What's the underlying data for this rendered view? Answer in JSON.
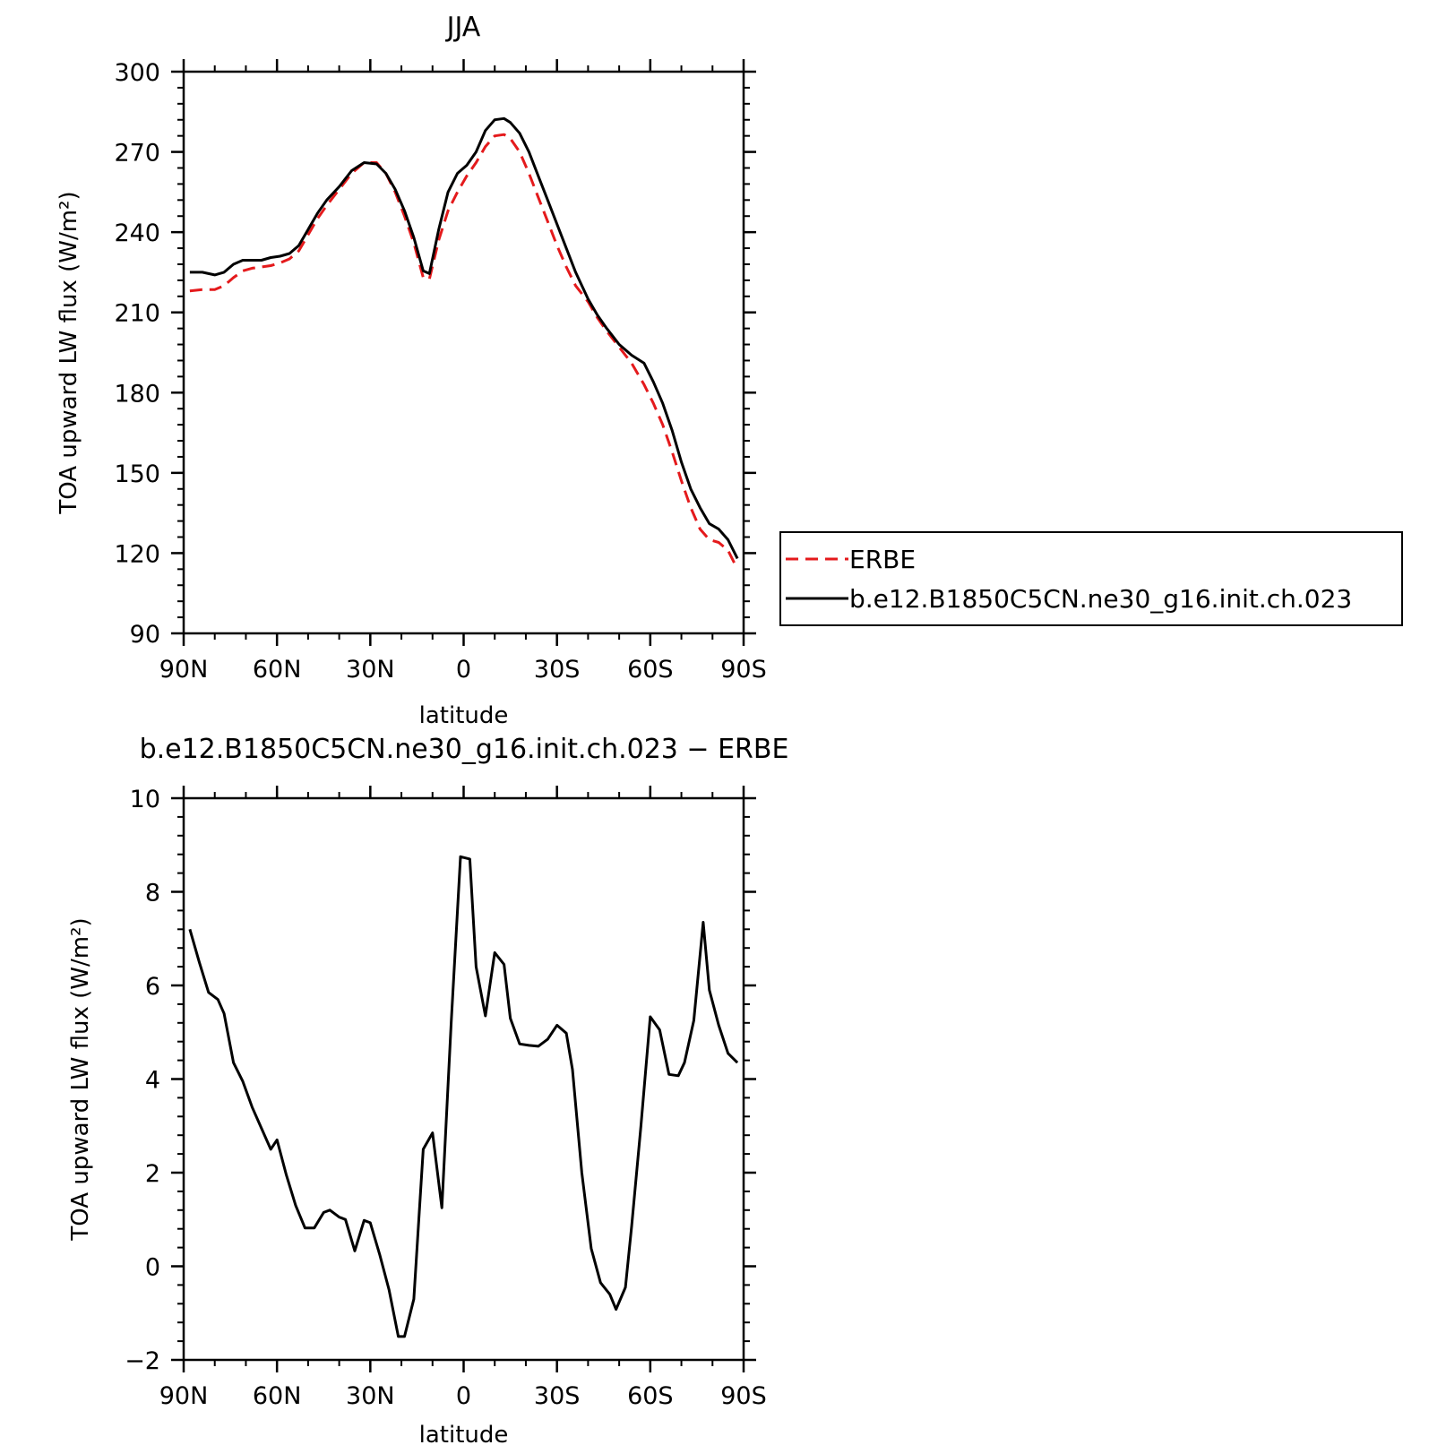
{
  "chart_data": [
    {
      "type": "line",
      "title": "JJA",
      "xlabel": "latitude",
      "ylabel": "TOA upward LW flux (W/m²)",
      "xlim": [
        90,
        -90
      ],
      "ylim": [
        90,
        300
      ],
      "xticks": [
        90,
        60,
        30,
        0,
        -30,
        -60,
        -90
      ],
      "xtick_labels": [
        "90N",
        "60N",
        "30N",
        "0",
        "30S",
        "60S",
        "90S"
      ],
      "yticks": [
        90,
        120,
        150,
        180,
        210,
        240,
        270,
        300
      ],
      "ytick_labels": [
        "90",
        "120",
        "150",
        "180",
        "210",
        "240",
        "270",
        "300"
      ],
      "legend_position": "right",
      "series": [
        {
          "name": "ERBE",
          "color": "#e41a1c",
          "style": "dashed",
          "x": [
            88,
            84,
            80,
            77,
            74,
            71,
            68,
            65,
            62,
            59,
            56,
            53,
            50,
            47,
            44,
            40,
            36,
            32,
            28,
            25,
            22,
            19,
            16,
            13,
            11,
            8,
            5,
            2,
            -1,
            -4,
            -7,
            -10,
            -13,
            -15,
            -18,
            -21,
            -24,
            -27,
            -30,
            -33,
            -36,
            -40,
            -43,
            -46,
            -50,
            -54,
            -58,
            -61,
            -64,
            -67,
            -70,
            -73,
            -76,
            -79,
            -82,
            -85,
            -88
          ],
          "y": [
            218,
            218.5,
            218.5,
            220,
            223,
            225.5,
            226.5,
            227,
            227.5,
            228.5,
            230,
            233,
            239,
            245,
            250,
            256,
            262,
            266,
            266,
            262,
            255,
            246,
            236,
            223,
            222.5,
            237,
            248,
            255,
            261,
            266,
            272,
            276,
            276.5,
            275,
            270,
            262,
            253,
            244,
            235,
            227,
            220,
            214,
            208,
            203,
            197,
            191,
            183,
            176,
            168,
            158,
            147,
            137,
            129,
            125,
            124,
            121,
            114
          ]
        },
        {
          "name": "b.e12.B1850C5CN.ne30_g16.init.ch.023",
          "color": "#000000",
          "style": "solid",
          "x": [
            88,
            84,
            80,
            77,
            74,
            71,
            68,
            65,
            62,
            59,
            56,
            53,
            50,
            47,
            44,
            40,
            36,
            32,
            28,
            25,
            22,
            19,
            16,
            13,
            11,
            8,
            5,
            2,
            -1,
            -4,
            -7,
            -10,
            -13,
            -15,
            -18,
            -21,
            -24,
            -27,
            -30,
            -33,
            -36,
            -40,
            -43,
            -46,
            -50,
            -54,
            -58,
            -61,
            -64,
            -67,
            -70,
            -73,
            -76,
            -79,
            -82,
            -85,
            -88
          ],
          "y": [
            225,
            225,
            224,
            225,
            228,
            229.5,
            229.5,
            229.5,
            230.5,
            231,
            232,
            235,
            241,
            247,
            252,
            257,
            263,
            266,
            265.5,
            262,
            256,
            248,
            238,
            225.5,
            224.5,
            241,
            255,
            262,
            265,
            270,
            278,
            282,
            282.5,
            281,
            277,
            270,
            261,
            252,
            243,
            234,
            225,
            215,
            209,
            204,
            198,
            194,
            191,
            184,
            176,
            166,
            154,
            144,
            137,
            131,
            129,
            125,
            118
          ]
        }
      ]
    },
    {
      "type": "line",
      "title": "b.e12.B1850C5CN.ne30_g16.init.ch.023 − ERBE",
      "xlabel": "latitude",
      "ylabel": "TOA upward LW flux (W/m²)",
      "xlim": [
        90,
        -90
      ],
      "ylim": [
        -2,
        10
      ],
      "xticks": [
        90,
        60,
        30,
        0,
        -30,
        -60,
        -90
      ],
      "xtick_labels": [
        "90N",
        "60N",
        "30N",
        "0",
        "30S",
        "60S",
        "90S"
      ],
      "yticks": [
        -2,
        0,
        2,
        4,
        6,
        8,
        10
      ],
      "ytick_labels": [
        "−2",
        "0",
        "2",
        "4",
        "6",
        "8",
        "10"
      ],
      "series": [
        {
          "color": "#000000",
          "style": "solid",
          "x": [
            88,
            85,
            82,
            79,
            77,
            74,
            71,
            68,
            65,
            62,
            60,
            57,
            54,
            51,
            48,
            45,
            43,
            40,
            38,
            35,
            32,
            30,
            27,
            24,
            21,
            19,
            16,
            13,
            10,
            7,
            4,
            1,
            -2,
            -4,
            -7,
            -10,
            -13,
            -15,
            -18,
            -21,
            -24,
            -27,
            -30,
            -33,
            -35,
            -38,
            -41,
            -44,
            -47,
            -49,
            -52,
            -54,
            -57,
            -60,
            -63,
            -66,
            -69,
            -71,
            -74,
            -77,
            -79,
            -82,
            -85,
            -88
          ],
          "y": [
            7.2,
            6.5,
            5.85,
            5.7,
            5.4,
            4.35,
            3.95,
            3.4,
            2.95,
            2.5,
            2.7,
            1.95,
            1.3,
            0.82,
            0.82,
            1.15,
            1.2,
            1.05,
            1.0,
            0.33,
            0.98,
            0.93,
            0.25,
            -0.5,
            -1.5,
            -1.5,
            -0.7,
            2.5,
            2.85,
            1.25,
            5.2,
            8.75,
            8.7,
            6.4,
            5.35,
            6.7,
            6.45,
            5.3,
            4.75,
            4.72,
            4.7,
            4.85,
            5.15,
            4.98,
            4.2,
            2.0,
            0.38,
            -0.35,
            -0.6,
            -0.92,
            -0.45,
            0.85,
            3.0,
            5.33,
            5.05,
            4.1,
            4.07,
            4.35,
            5.25,
            7.35,
            5.9,
            5.15,
            4.55,
            4.35
          ]
        }
      ]
    }
  ]
}
